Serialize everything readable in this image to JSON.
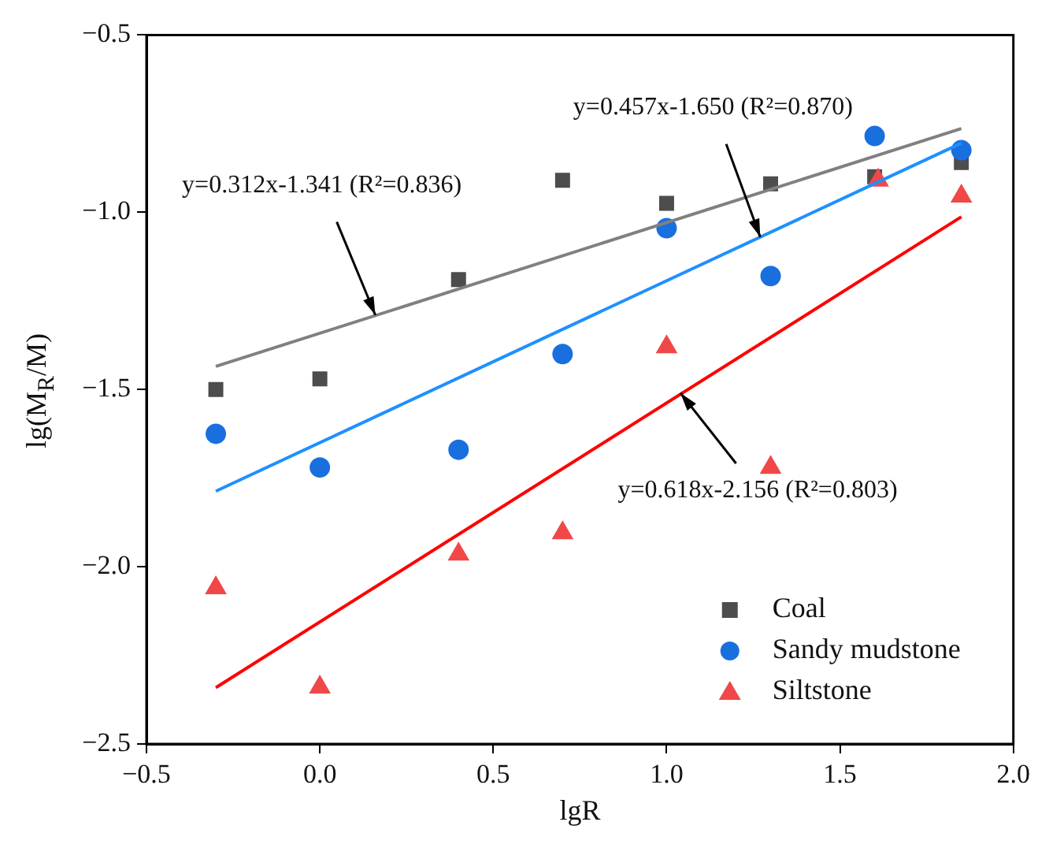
{
  "chart_data": {
    "type": "scatter",
    "xlabel": "lgR",
    "ylabel": "lg(M$_{R}$/M)",
    "xlim": [
      -0.5,
      2.0
    ],
    "ylim": [
      -2.5,
      -0.5
    ],
    "xticks": [
      {
        "value": -0.5,
        "label": "−0.5"
      },
      {
        "value": 0,
        "label": "0.0"
      },
      {
        "value": 0.5,
        "label": "0.5"
      },
      {
        "value": 1.0,
        "label": "1.0"
      },
      {
        "value": 1.5,
        "label": "1.5"
      },
      {
        "value": 2.0,
        "label": "2.0"
      }
    ],
    "yticks": [
      {
        "value": -2.5,
        "label": "−2.5"
      },
      {
        "value": -2.0,
        "label": "−2.0"
      },
      {
        "value": -1.5,
        "label": "−1.5"
      },
      {
        "value": -1.0,
        "label": "−1.0"
      },
      {
        "value": -0.5,
        "label": "−0.5"
      }
    ],
    "grid": false,
    "legend": "bottom right",
    "series": [
      {
        "name": "Coal",
        "type": "scatter",
        "marker": "square",
        "color": "#4d4d4d",
        "x": [
          -0.3,
          0,
          0.4,
          0.7,
          1.0,
          1.3,
          1.6,
          1.85
        ],
        "values": [
          -1.5,
          -1.47,
          -1.19,
          -0.91,
          -0.975,
          -0.92,
          -0.9,
          -0.86
        ]
      },
      {
        "name": "Sandy mudstone",
        "type": "scatter",
        "marker": "circle",
        "color": "#1a6fdf",
        "x": [
          -0.3,
          0,
          0.4,
          0.7,
          1.0,
          1.3,
          1.6,
          1.85
        ],
        "values": [
          -1.625,
          -1.72,
          -1.67,
          -1.4,
          -1.045,
          -1.18,
          -0.785,
          -0.825
        ]
      },
      {
        "name": "Siltstone",
        "type": "scatter",
        "marker": "triangle",
        "color": "#f04848",
        "x": [
          -0.3,
          0,
          0.4,
          0.7,
          1.0,
          1.3,
          1.61,
          1.85
        ],
        "values": [
          -2.06,
          -2.34,
          -1.965,
          -1.905,
          -1.38,
          -1.72,
          -0.91,
          -0.955
        ]
      },
      {
        "type": "line",
        "marker": "none",
        "color": "#808080",
        "x": [
          -0.3,
          1.85
        ],
        "values": [
          -1.435,
          -0.764
        ]
      },
      {
        "type": "line",
        "marker": "none",
        "color": "#1e90ff",
        "x": [
          -0.3,
          1.85
        ],
        "values": [
          -1.787,
          -0.805
        ]
      },
      {
        "type": "line",
        "marker": "none",
        "color": "#ff0000",
        "x": [
          -0.3,
          1.85
        ],
        "values": [
          -2.341,
          -1.013
        ]
      }
    ],
    "annotations": [
      {
        "text": "y=0.312x-1.341 (R²=0.836)",
        "x": 0.16,
        "y": -1.29
      },
      {
        "text": "y=0.457x-1.650 (R²=0.870)",
        "x": 1.27,
        "y": -1.07
      },
      {
        "text": "y=0.618x-2.156 (R²=0.803)",
        "x": 1.04,
        "y": -1.51
      }
    ]
  }
}
